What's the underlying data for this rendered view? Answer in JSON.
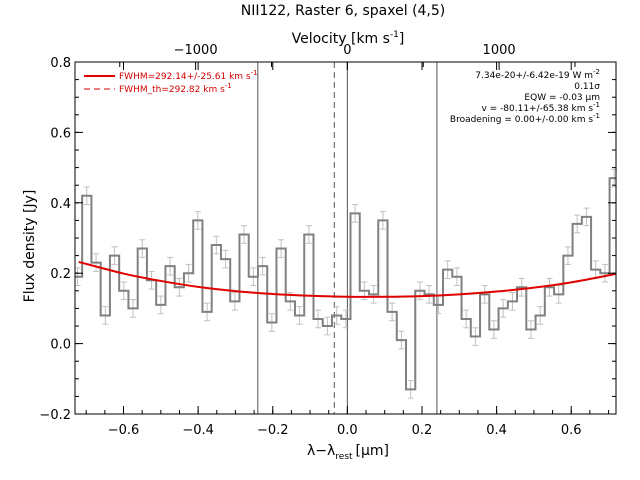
{
  "chart_data": {
    "type": "line",
    "title": "NII122, Raster 6, spaxel (4,5)",
    "xlabel": "λ−λ",
    "xlabel_sub": "rest",
    "xlabel_unit": "[μm]",
    "ylabel": "Flux density [Jy]",
    "x2label": "Velocity [km s",
    "x2label_sup": "-1",
    "x2label_close": "]",
    "xlim": [
      -0.73,
      0.72
    ],
    "ylim": [
      -0.2,
      0.8
    ],
    "xticks": [
      -0.6,
      -0.4,
      -0.2,
      0.0,
      0.2,
      0.4,
      0.6
    ],
    "xtick_labels": [
      "−0.6",
      "−0.4",
      "−0.2",
      "0.0",
      "0.2",
      "0.4",
      "0.6"
    ],
    "yticks": [
      -0.2,
      0.0,
      0.2,
      0.4,
      0.6,
      0.8
    ],
    "ytick_labels": [
      "−0.2",
      "0.0",
      "0.2",
      "0.4",
      "0.6",
      "0.8"
    ],
    "x2ticks": [
      -1000,
      0,
      1000
    ],
    "x2tick_labels": [
      "−1000",
      "0",
      "1000"
    ],
    "x2_um_per_kms": 0.0004067,
    "x2_center_um": 0.0,
    "vlines_solid": [
      -0.24,
      0.0,
      0.24
    ],
    "vline_dashed": -0.035,
    "spectrum": {
      "name": "data",
      "color": "#808080",
      "errcolor": "#c0c0c0",
      "x": [
        -0.7232,
        -0.6984,
        -0.6736,
        -0.6488,
        -0.624,
        -0.5992,
        -0.5744,
        -0.5496,
        -0.5248,
        -0.5,
        -0.4752,
        -0.4504,
        -0.4256,
        -0.4008,
        -0.376,
        -0.3512,
        -0.3264,
        -0.3016,
        -0.2768,
        -0.252,
        -0.2272,
        -0.2024,
        -0.1776,
        -0.1528,
        -0.128,
        -0.1032,
        -0.0784,
        -0.0536,
        -0.0288,
        -0.004,
        0.0208,
        0.0456,
        0.0704,
        0.0952,
        0.12,
        0.1448,
        0.1696,
        0.1944,
        0.2192,
        0.244,
        0.2688,
        0.2936,
        0.3184,
        0.3432,
        0.368,
        0.3928,
        0.4176,
        0.4424,
        0.4672,
        0.492,
        0.5168,
        0.5416,
        0.5664,
        0.5912,
        0.616,
        0.6408,
        0.6656,
        0.6904,
        0.7152
      ],
      "y": [
        0.19,
        0.42,
        0.23,
        0.08,
        0.25,
        0.15,
        0.1,
        0.27,
        0.18,
        0.11,
        0.22,
        0.16,
        0.2,
        0.35,
        0.09,
        0.28,
        0.24,
        0.12,
        0.31,
        0.19,
        0.22,
        0.06,
        0.27,
        0.12,
        0.08,
        0.31,
        0.07,
        0.05,
        0.08,
        0.07,
        0.37,
        0.15,
        0.14,
        0.35,
        0.09,
        0.01,
        -0.13,
        0.15,
        0.14,
        0.11,
        0.21,
        0.19,
        0.07,
        0.02,
        0.14,
        0.04,
        0.1,
        0.12,
        0.16,
        0.04,
        0.08,
        0.16,
        0.14,
        0.25,
        0.34,
        0.36,
        0.21,
        0.2,
        0.47
      ],
      "err": [
        0.025,
        0.025,
        0.025,
        0.025,
        0.025,
        0.025,
        0.025,
        0.025,
        0.025,
        0.025,
        0.025,
        0.025,
        0.025,
        0.025,
        0.025,
        0.025,
        0.025,
        0.025,
        0.025,
        0.025,
        0.025,
        0.025,
        0.025,
        0.025,
        0.025,
        0.025,
        0.025,
        0.025,
        0.025,
        0.025,
        0.025,
        0.025,
        0.025,
        0.025,
        0.025,
        0.025,
        0.025,
        0.025,
        0.025,
        0.025,
        0.025,
        0.025,
        0.025,
        0.025,
        0.025,
        0.025,
        0.025,
        0.025,
        0.025,
        0.025,
        0.025,
        0.025,
        0.025,
        0.025,
        0.025,
        0.025,
        0.025,
        0.025,
        0.025
      ]
    },
    "fit": {
      "name": "FWHM=292.14+/-25.61 km s",
      "name_sup": "-1",
      "color": "#e00000",
      "x": [
        -0.72,
        -0.6,
        -0.5,
        -0.4,
        -0.3,
        -0.2,
        -0.1,
        0.0,
        0.1,
        0.2,
        0.3,
        0.4,
        0.5,
        0.6,
        0.72
      ],
      "y": [
        0.232,
        0.199,
        0.178,
        0.161,
        0.149,
        0.141,
        0.136,
        0.133,
        0.133,
        0.135,
        0.14,
        0.148,
        0.159,
        0.174,
        0.198
      ]
    },
    "theory_legend": {
      "name": "FWHM_th=292.82 km s",
      "name_sup": "-1",
      "color": "#e00000"
    },
    "annotations": [
      {
        "text": "7.34e-20+/-6.42e-19 W m",
        "sup": "-2"
      },
      {
        "text": "0.11σ",
        "sup": ""
      },
      {
        "text": "EQW = -0.03 μm",
        "sup": ""
      },
      {
        "text": "v = -80.11+/-65.38 km s",
        "sup": "-1"
      },
      {
        "text": "Broadening = 0.00+/-0.00 km s",
        "sup": "-1"
      }
    ],
    "legend_position": "top-left",
    "annotations_position": "top-right",
    "grid": false
  }
}
